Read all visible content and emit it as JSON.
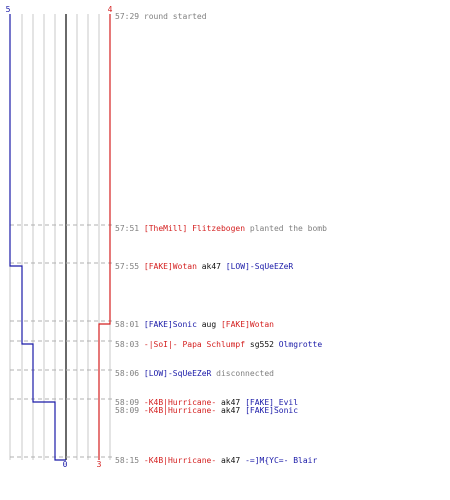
{
  "colors": {
    "team_blue": "#1a1aa8",
    "team_red": "#d42020",
    "neutral": "#808080",
    "dark": "#101010",
    "grid": "#c8c8c8",
    "center_line": "#6a6a6a"
  },
  "score": {
    "blue_start": "5",
    "red_start": "4",
    "blue_end": "0",
    "red_end": "3"
  },
  "chart_data": {
    "type": "line",
    "series": [
      {
        "team": "blue",
        "values": [
          5,
          5,
          4,
          4,
          3,
          2,
          1,
          0
        ],
        "times": [
          "57:29",
          "57:51",
          "57:55",
          "58:01",
          "58:03",
          "58:06",
          "58:09",
          "58:15"
        ]
      },
      {
        "team": "red",
        "values": [
          4,
          4,
          4,
          3,
          3,
          3,
          3,
          3
        ],
        "times": [
          "57:29",
          "57:51",
          "57:55",
          "58:01",
          "58:03",
          "58:06",
          "58:09",
          "58:15"
        ]
      }
    ]
  },
  "events": [
    {
      "time": "57:29",
      "parts": [
        {
          "t": "round started",
          "c": "neutral"
        }
      ]
    },
    {
      "time": "57:51",
      "parts": [
        {
          "t": "[TheMill] Flitzebogen",
          "c": "red"
        },
        {
          "t": " planted the bomb",
          "c": "neutral"
        }
      ]
    },
    {
      "time": "57:55",
      "parts": [
        {
          "t": "[FAKE]Wotan",
          "c": "red"
        },
        {
          "t": " ak47 ",
          "c": "dark"
        },
        {
          "t": "[LOW]-SqUeEZeR",
          "c": "blue"
        }
      ]
    },
    {
      "time": "58:01",
      "parts": [
        {
          "t": "[FAKE]Sonic",
          "c": "blue"
        },
        {
          "t": " aug ",
          "c": "dark"
        },
        {
          "t": "[FAKE]Wotan",
          "c": "red"
        }
      ]
    },
    {
      "time": "58:03",
      "parts": [
        {
          "t": "-|SoI|- Papa Schlumpf",
          "c": "red"
        },
        {
          "t": "  sg552 ",
          "c": "dark"
        },
        {
          "t": "Olmgrotte",
          "c": "blue"
        }
      ]
    },
    {
      "time": "58:06",
      "parts": [
        {
          "t": "[LOW]-SqUeEZeR",
          "c": "blue"
        },
        {
          "t": " disconnected",
          "c": "neutral"
        }
      ]
    },
    {
      "time": "58:09",
      "parts": [
        {
          "t": "-K4B|Hurricane-",
          "c": "red"
        },
        {
          "t": " ak47 ",
          "c": "dark"
        },
        {
          "t": "[FAKE]_Evil",
          "c": "blue"
        }
      ]
    },
    {
      "time": "58:09",
      "parts": [
        {
          "t": "-K4B|Hurricane-",
          "c": "red"
        },
        {
          "t": " ak47 ",
          "c": "dark"
        },
        {
          "t": "[FAKE]Sonic",
          "c": "blue"
        }
      ]
    },
    {
      "time": "58:15",
      "parts": [
        {
          "t": "-K4B|Hurricane-",
          "c": "red"
        },
        {
          "t": " ak47 ",
          "c": "dark"
        },
        {
          "t": "-=]M{YC=- Blair",
          "c": "blue"
        }
      ]
    }
  ]
}
